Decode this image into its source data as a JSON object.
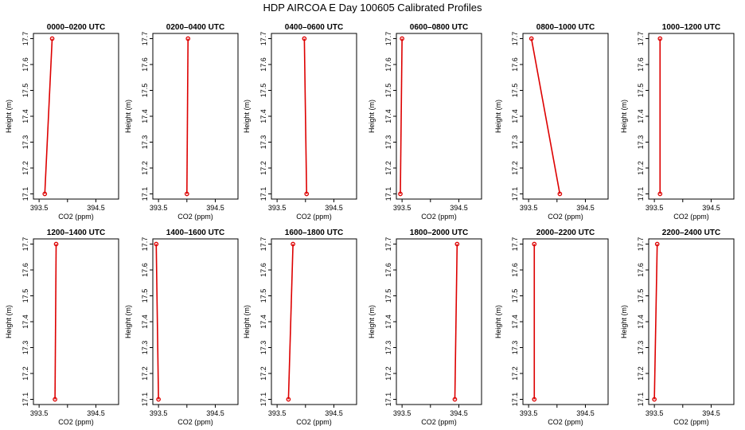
{
  "title": "HDP AIRCOA E  Day 100605  Calibrated Profiles",
  "chart_data": {
    "type": "line",
    "series_color": "#dd0000",
    "xlabel": "CO2 (ppm)",
    "ylabel": "Height (m)",
    "xlim": [
      393.4,
      394.9
    ],
    "ylim": [
      17.08,
      17.72
    ],
    "xticks": [
      393.5,
      394.0,
      394.5
    ],
    "xtick_labels": [
      "393.5",
      "",
      "394.5"
    ],
    "yticks": [
      17.1,
      17.2,
      17.3,
      17.4,
      17.5,
      17.6,
      17.7
    ],
    "ytick_labels": [
      "17.1",
      "17.2",
      "17.3",
      "17.4",
      "17.5",
      "17.6",
      "17.7"
    ],
    "panels": [
      {
        "title": "0000–0200 UTC",
        "points": [
          {
            "x": 393.6,
            "y": 17.1
          },
          {
            "x": 393.73,
            "y": 17.7
          }
        ]
      },
      {
        "title": "0200–0400 UTC",
        "points": [
          {
            "x": 394.0,
            "y": 17.1
          },
          {
            "x": 394.02,
            "y": 17.7
          }
        ]
      },
      {
        "title": "0400–0600 UTC",
        "points": [
          {
            "x": 394.02,
            "y": 17.1
          },
          {
            "x": 393.98,
            "y": 17.7
          }
        ]
      },
      {
        "title": "0600–0800 UTC",
        "points": [
          {
            "x": 393.47,
            "y": 17.1
          },
          {
            "x": 393.5,
            "y": 17.7
          }
        ]
      },
      {
        "title": "0800–1000 UTC",
        "points": [
          {
            "x": 394.05,
            "y": 17.1
          },
          {
            "x": 393.55,
            "y": 17.7
          }
        ]
      },
      {
        "title": "1000–1200 UTC",
        "points": [
          {
            "x": 393.6,
            "y": 17.1
          },
          {
            "x": 393.6,
            "y": 17.7
          }
        ]
      },
      {
        "title": "1200–1400 UTC",
        "points": [
          {
            "x": 393.78,
            "y": 17.1
          },
          {
            "x": 393.8,
            "y": 17.7
          }
        ]
      },
      {
        "title": "1400–1600 UTC",
        "points": [
          {
            "x": 393.5,
            "y": 17.1
          },
          {
            "x": 393.46,
            "y": 17.7
          }
        ]
      },
      {
        "title": "1600–1800 UTC",
        "points": [
          {
            "x": 393.7,
            "y": 17.1
          },
          {
            "x": 393.78,
            "y": 17.7
          }
        ]
      },
      {
        "title": "1800–2000 UTC",
        "points": [
          {
            "x": 394.43,
            "y": 17.1
          },
          {
            "x": 394.47,
            "y": 17.7
          }
        ]
      },
      {
        "title": "2000–2200 UTC",
        "points": [
          {
            "x": 393.6,
            "y": 17.1
          },
          {
            "x": 393.6,
            "y": 17.7
          }
        ]
      },
      {
        "title": "2200–2400 UTC",
        "points": [
          {
            "x": 393.5,
            "y": 17.1
          },
          {
            "x": 393.55,
            "y": 17.7
          }
        ]
      }
    ]
  }
}
